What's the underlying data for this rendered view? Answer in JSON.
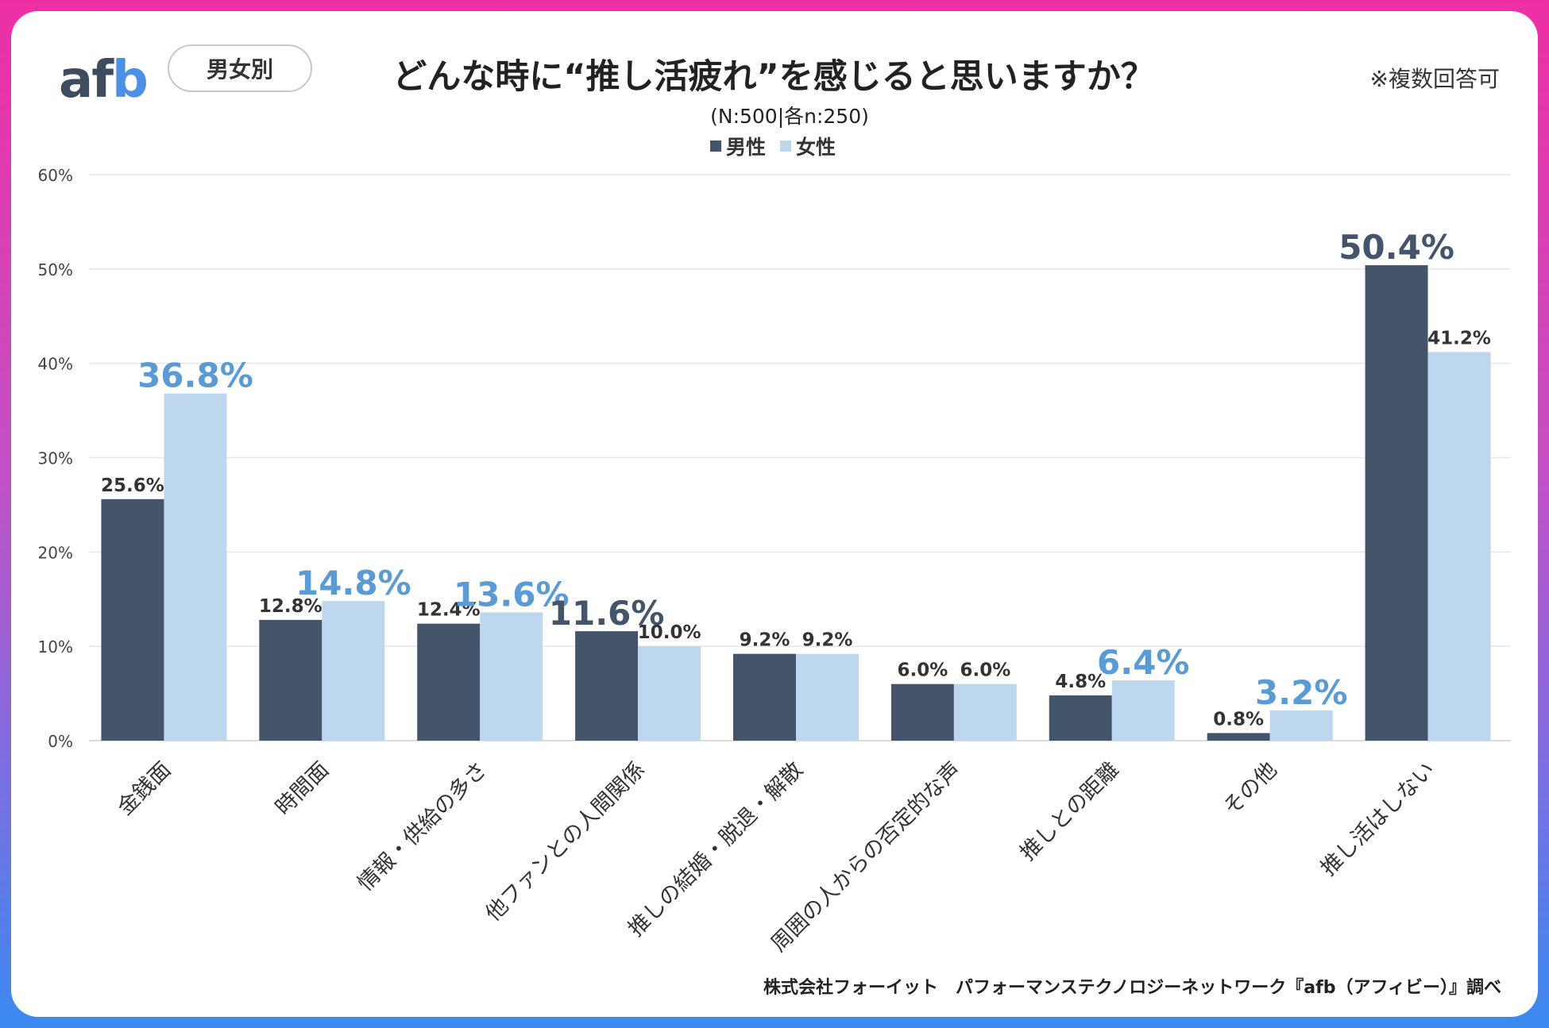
{
  "header": {
    "logo_text_a": "af",
    "logo_text_b": "b",
    "filter_label": "男女別",
    "title": "どんな時に“推し活疲れ”を感じると思いますか？",
    "sample_size": "(N:500|各n:250)",
    "note": "※複数回答可"
  },
  "footer": {
    "credit": "株式会社フォーイット　パフォーマンステクノロジーネットワーク『afb（アフィビー）』調べ"
  },
  "colors": {
    "male": "#44546a",
    "female": "#bdd7ee",
    "highlight_male": "#44546a",
    "highlight_female": "#5b9bd5",
    "label": "#333333"
  },
  "chart_data": {
    "type": "bar",
    "title": "どんな時に“推し活疲れ”を感じると思いますか？",
    "xlabel": "",
    "ylabel": "",
    "ylim": [
      0,
      60
    ],
    "yticks": [
      0,
      10,
      20,
      30,
      40,
      50,
      60
    ],
    "ytick_labels": [
      "0%",
      "10%",
      "20%",
      "30%",
      "40%",
      "50%",
      "60%"
    ],
    "grid": true,
    "legend_position": "top",
    "categories": [
      "金銭面",
      "時間面",
      "情報・供給の多さ",
      "他ファンとの人間関係",
      "推しの結婚・脱退・解散",
      "周囲の人からの否定的な声",
      "推しとの距離",
      "その他",
      "推し活はしない"
    ],
    "series": [
      {
        "name": "男性",
        "values": [
          25.6,
          12.8,
          12.4,
          11.6,
          9.2,
          6.0,
          4.8,
          0.8,
          50.4
        ],
        "labels": [
          "25.6%",
          "12.8%",
          "12.4%",
          "11.6%",
          "9.2%",
          "6.0%",
          "4.8%",
          "0.8%",
          "50.4%"
        ],
        "highlight": [
          false,
          false,
          false,
          true,
          false,
          false,
          false,
          false,
          true
        ]
      },
      {
        "name": "女性",
        "values": [
          36.8,
          14.8,
          13.6,
          10.0,
          9.2,
          6.0,
          6.4,
          3.2,
          41.2
        ],
        "labels": [
          "36.8%",
          "14.8%",
          "13.6%",
          "10.0%",
          "9.2%",
          "6.0%",
          "6.4%",
          "3.2%",
          "41.2%"
        ],
        "highlight": [
          true,
          true,
          true,
          false,
          false,
          false,
          true,
          true,
          false
        ]
      }
    ]
  }
}
